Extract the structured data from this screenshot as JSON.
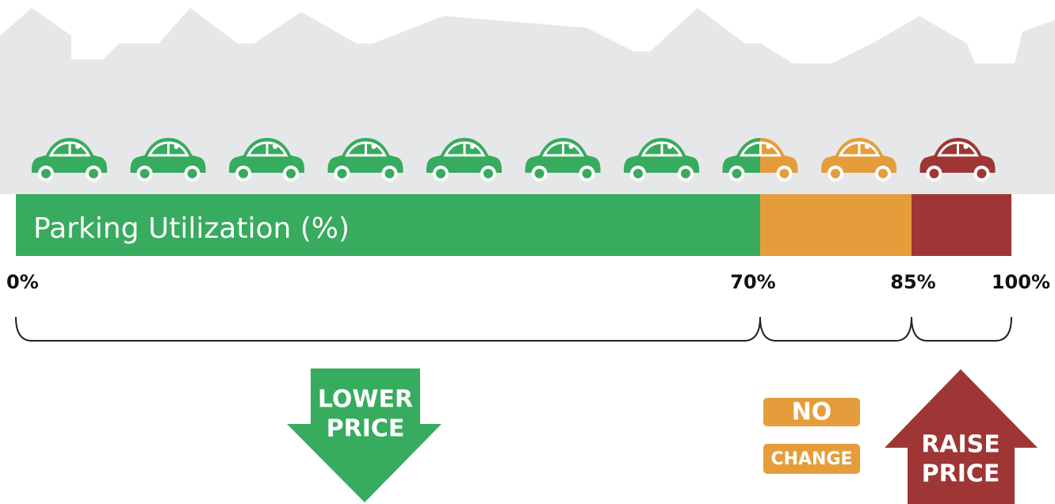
{
  "bar": {
    "label": "Parking Utilization (%)",
    "ticks": [
      {
        "value": 0,
        "label": "0%"
      },
      {
        "value": 70,
        "label": "70%"
      },
      {
        "value": 85,
        "label": "85%"
      },
      {
        "value": 100,
        "label": "100%"
      }
    ],
    "colors": [
      "#37ab5e",
      "#e59d3b",
      "#9e3636"
    ]
  },
  "actions": [
    {
      "lines": [
        "LOWER",
        "PRICE"
      ]
    },
    {
      "lines": [
        "NO",
        "CHANGE"
      ]
    },
    {
      "lines": [
        "RAISE",
        "PRICE"
      ]
    }
  ]
}
